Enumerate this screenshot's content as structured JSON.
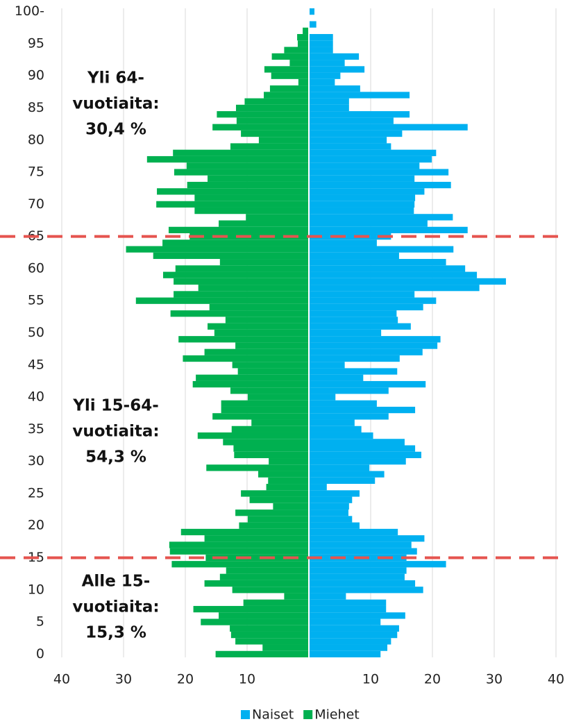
{
  "chart_data": {
    "type": "pyramid",
    "y": [
      0,
      1,
      2,
      3,
      4,
      5,
      6,
      7,
      8,
      9,
      10,
      11,
      12,
      13,
      14,
      15,
      16,
      17,
      18,
      19,
      20,
      21,
      22,
      23,
      24,
      25,
      26,
      27,
      28,
      29,
      30,
      31,
      32,
      33,
      34,
      35,
      36,
      37,
      38,
      39,
      40,
      41,
      42,
      43,
      44,
      45,
      46,
      47,
      48,
      49,
      50,
      51,
      52,
      53,
      54,
      55,
      56,
      57,
      58,
      59,
      60,
      61,
      62,
      63,
      64,
      65,
      66,
      67,
      68,
      69,
      70,
      71,
      72,
      73,
      74,
      75,
      76,
      77,
      78,
      79,
      80,
      81,
      82,
      83,
      84,
      85,
      86,
      87,
      88,
      89,
      90,
      91,
      92,
      93,
      94,
      95,
      96,
      97,
      98,
      99,
      100
    ],
    "series": [
      {
        "name": "Naiset",
        "color": "#00b0f0",
        "values": [
          11.6,
          12.7,
          13.3,
          14.3,
          14.6,
          11.6,
          15.6,
          12.5,
          12.5,
          6.0,
          18.5,
          17.2,
          15.5,
          15.8,
          22.2,
          15.8,
          17.5,
          16.6,
          18.7,
          14.4,
          8.2,
          7.0,
          6.4,
          6.5,
          7.0,
          8.2,
          2.9,
          10.7,
          12.2,
          9.8,
          15.7,
          18.2,
          17.2,
          15.5,
          10.4,
          8.5,
          7.4,
          12.9,
          17.2,
          11.0,
          4.3,
          12.9,
          18.9,
          8.8,
          14.3,
          5.8,
          14.7,
          18.4,
          20.8,
          21.3,
          11.7,
          16.5,
          14.4,
          14.2,
          18.5,
          20.6,
          17.1,
          27.6,
          31.9,
          27.2,
          25.3,
          22.2,
          14.6,
          23.4,
          11.0,
          13.3,
          25.7,
          19.2,
          23.3,
          17.0,
          17.1,
          17.2,
          18.7,
          23.0,
          17.1,
          22.6,
          17.9,
          19.9,
          20.6,
          13.3,
          12.6,
          15.1,
          25.7,
          13.7,
          16.3,
          6.5,
          6.5,
          16.3,
          8.3,
          4.2,
          5.1,
          9.0,
          5.8,
          8.1,
          3.9,
          3.9,
          3.9,
          0,
          1.2,
          0,
          0.9
        ]
      },
      {
        "name": "Miehet",
        "color": "#00b050",
        "values": [
          -15.1,
          -7.5,
          -11.9,
          -12.6,
          -12.8,
          -17.5,
          -14.6,
          -18.7,
          -10.6,
          -4.0,
          -12.4,
          -16.9,
          -14.4,
          -13.4,
          -22.2,
          -16.7,
          -22.5,
          -22.6,
          -16.9,
          -20.7,
          -11.3,
          -9.9,
          -11.9,
          -5.8,
          -9.6,
          -11.0,
          -6.9,
          -6.6,
          -8.2,
          -16.6,
          -6.5,
          -12.1,
          -12.2,
          -13.9,
          -18.0,
          -12.5,
          -9.3,
          -15.6,
          -14.2,
          -14.2,
          -9.9,
          -12.7,
          -18.8,
          -18.3,
          -11.5,
          -12.4,
          -20.4,
          -16.9,
          -11.9,
          -21.1,
          -15.3,
          -16.4,
          -13.5,
          -22.4,
          -16.1,
          -28.0,
          -21.9,
          -17.9,
          -21.9,
          -23.6,
          -21.6,
          -14.4,
          -25.2,
          -29.6,
          -23.7,
          -19.3,
          -22.7,
          -14.6,
          -10.2,
          -18.5,
          -24.7,
          -18.5,
          -24.6,
          -19.7,
          -16.4,
          -21.8,
          -19.8,
          -26.2,
          -22.0,
          -12.7,
          -8.1,
          -11.0,
          -15.6,
          -11.7,
          -14.9,
          -11.8,
          -10.4,
          -7.3,
          -6.3,
          -1.7,
          -6.1,
          -7.2,
          -3.1,
          -6.0,
          -4.0,
          -1.8,
          -1.9,
          -1.0,
          0,
          0,
          0
        ]
      }
    ],
    "xlim": [
      -40,
      40
    ],
    "xticks": [
      {
        "value": -40,
        "label": "40"
      },
      {
        "value": -30,
        "label": "30"
      },
      {
        "value": -20,
        "label": "20"
      },
      {
        "value": -10,
        "label": "10"
      },
      10,
      20,
      30,
      40
    ],
    "ylim": [
      -0.5,
      100.5
    ],
    "yticks": [
      0,
      5,
      10,
      15,
      20,
      25,
      30,
      35,
      40,
      45,
      50,
      55,
      60,
      65,
      70,
      75,
      80,
      85,
      90,
      95,
      {
        "value": 100,
        "label": "100-"
      }
    ],
    "grid": true,
    "hlines": [
      65,
      15
    ],
    "annotations": [
      [
        "Yli 64-",
        "vuotiaita:",
        "30,4 %"
      ],
      [
        "Yli 15-64-",
        "vuotiaita:",
        "54,3 %"
      ],
      [
        "Alle 15-",
        "vuotiaita:",
        "15,3 %"
      ]
    ],
    "legend": "bottom"
  }
}
